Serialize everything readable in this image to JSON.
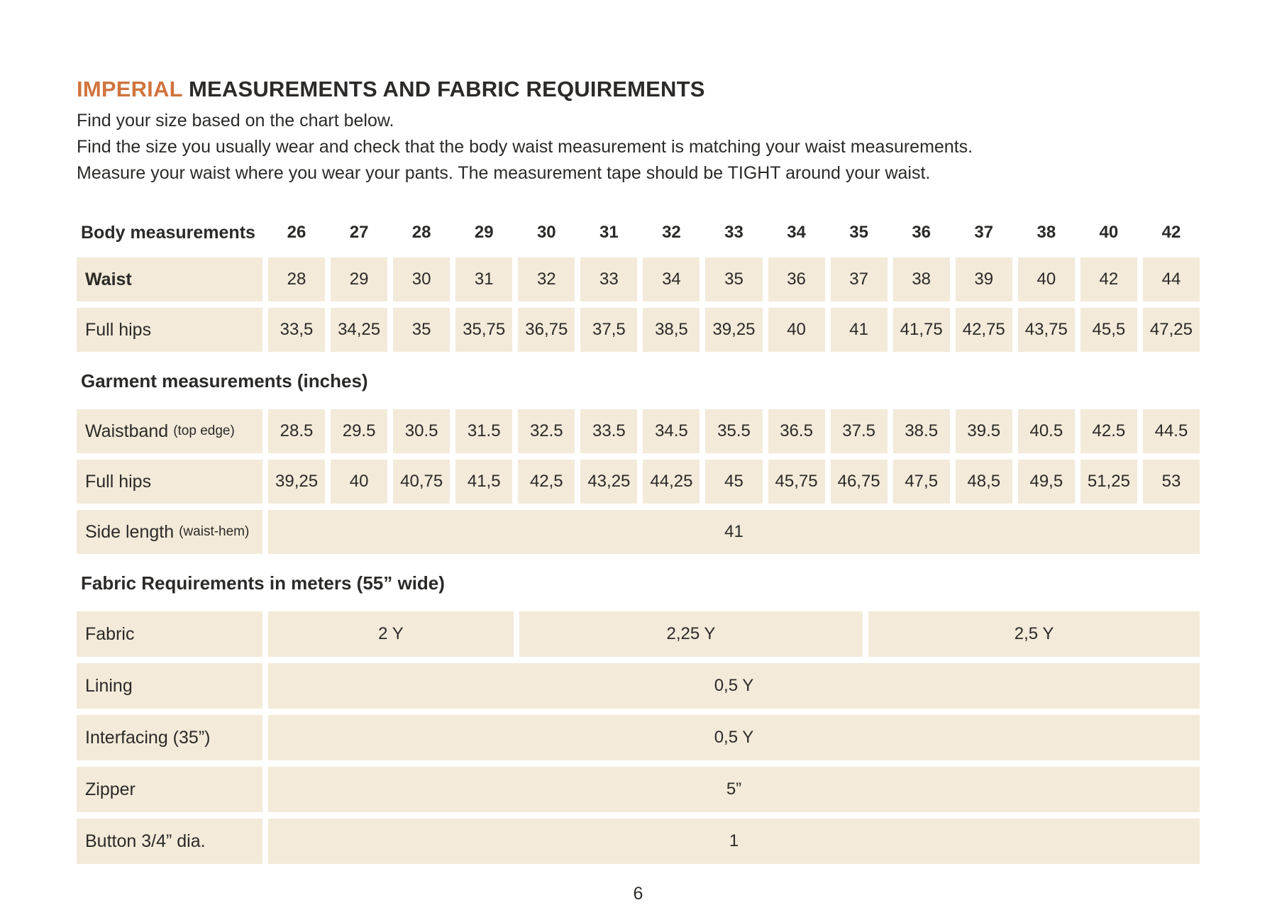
{
  "colors": {
    "accent_orange": "#d0743e",
    "cell_beige": "#f3ead9",
    "text_dark": "#2b2a28"
  },
  "page": {
    "title_highlight": "IMPERIAL",
    "title_rest": " MEASUREMENTS AND FABRIC REQUIREMENTS",
    "intro_lines": [
      "Find your size based on the chart below.",
      "Find the size you usually wear and check that the body waist measurement is matching your waist measurements.",
      "Measure your waist where you wear your pants. The measurement tape should be TIGHT around your waist."
    ],
    "page_number": "6"
  },
  "size_chart": {
    "header_label": "Body measurements",
    "sizes": [
      "26",
      "27",
      "28",
      "29",
      "30",
      "31",
      "32",
      "33",
      "34",
      "35",
      "36",
      "37",
      "38",
      "40",
      "42"
    ],
    "body_rows": [
      {
        "label": "Waist",
        "bold": true,
        "values": [
          "28",
          "29",
          "30",
          "31",
          "32",
          "33",
          "34",
          "35",
          "36",
          "37",
          "38",
          "39",
          "40",
          "42",
          "44"
        ]
      },
      {
        "label": "Full hips",
        "bold": false,
        "values": [
          "33,5",
          "34,25",
          "35",
          "35,75",
          "36,75",
          "37,5",
          "38,5",
          "39,25",
          "40",
          "41",
          "41,75",
          "42,75",
          "43,75",
          "45,5",
          "47,25"
        ]
      }
    ],
    "garment_heading": "Garment measurements (inches)",
    "garment_rows": [
      {
        "label": "Waistband",
        "note": "(top edge)",
        "bold": false,
        "values": [
          "28.5",
          "29.5",
          "30.5",
          "31.5",
          "32.5",
          "33.5",
          "34.5",
          "35.5",
          "36.5",
          "37.5",
          "38.5",
          "39.5",
          "40.5",
          "42.5",
          "44.5"
        ]
      },
      {
        "label": "Full hips",
        "bold": false,
        "values": [
          "39,25",
          "40",
          "40,75",
          "41,5",
          "42,5",
          "43,25",
          "44,25",
          "45",
          "45,75",
          "46,75",
          "47,5",
          "48,5",
          "49,5",
          "51,25",
          "53"
        ]
      },
      {
        "label": "Side length",
        "note": "(waist-hem)",
        "bold": false,
        "span_value": "41"
      }
    ],
    "fabric_heading": "Fabric Requirements in meters (55” wide)",
    "fabric_rows": [
      {
        "label": "Fabric",
        "cells": [
          {
            "value": "2 Y",
            "span": 4
          },
          {
            "value": "2,25 Y",
            "span": 5.6
          },
          {
            "value": "2,5 Y",
            "span": 5.4
          }
        ]
      },
      {
        "label": "Lining",
        "cells": [
          {
            "value": "0,5 Y",
            "span": 15
          }
        ]
      },
      {
        "label": "Interfacing (35”)",
        "cells": [
          {
            "value": "0,5 Y",
            "span": 15
          }
        ]
      },
      {
        "label": "Zipper",
        "cells": [
          {
            "value": "5”",
            "span": 15
          }
        ]
      },
      {
        "label": "Button 3/4” dia.",
        "cells": [
          {
            "value": "1",
            "span": 15
          }
        ]
      }
    ]
  }
}
